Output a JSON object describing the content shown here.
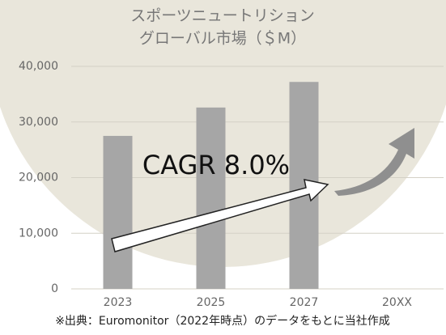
{
  "chart_data": {
    "type": "bar",
    "title": [
      "スポーツニュートリション",
      "グローバル市場（＄M）"
    ],
    "categories": [
      "2023",
      "2025",
      "2027",
      "20XX"
    ],
    "values": [
      27500,
      32600,
      37200,
      null
    ],
    "color": "#a6a6a6",
    "ylim": [
      0,
      40000
    ],
    "yticks": [
      0,
      {
        "value": 10000,
        "label": "10,000"
      },
      {
        "value": 20000,
        "label": "20,000"
      },
      {
        "value": 30000,
        "label": "30,000"
      },
      {
        "value": 40000,
        "label": "40,000"
      }
    ],
    "grid": true,
    "annotation": "CAGR 8.0%",
    "source": "※出典：Euromonitor（2022年時点）のデータをもとに当社作成"
  }
}
